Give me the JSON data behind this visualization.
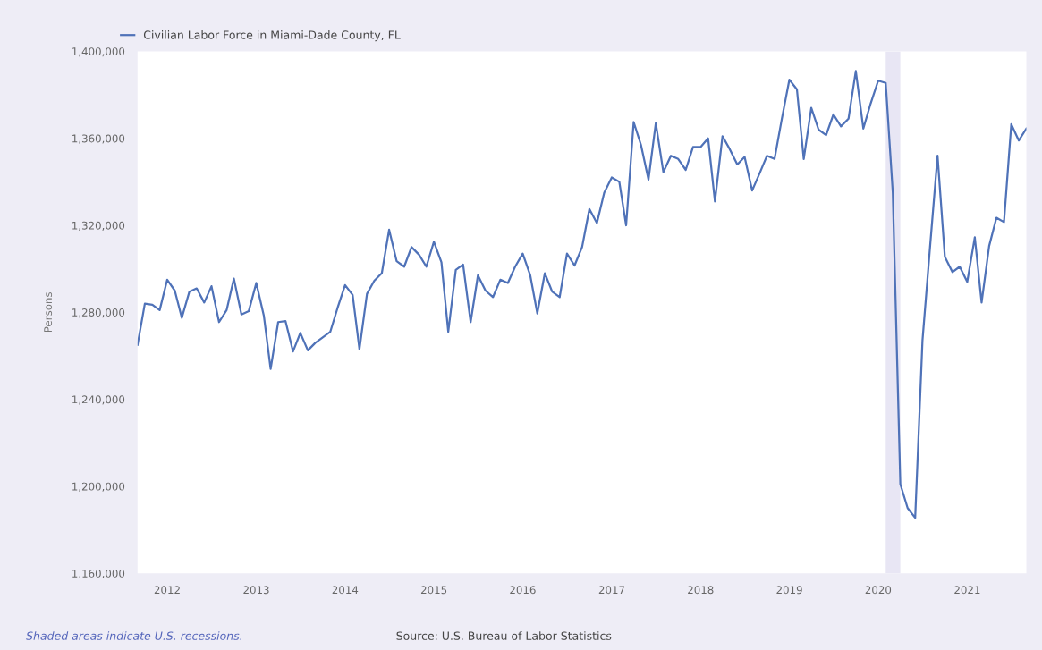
{
  "chart_data": {
    "type": "line",
    "ylabel": "Persons",
    "annotations": [
      "Shaded areas indicate U.S. recessions.",
      "Source: U.S. Bureau of Labor Statistics"
    ],
    "x": [
      "2011-09",
      "2011-10",
      "2011-11",
      "2011-12",
      "2012-01",
      "2012-02",
      "2012-03",
      "2012-04",
      "2012-05",
      "2012-06",
      "2012-07",
      "2012-08",
      "2012-09",
      "2012-10",
      "2012-11",
      "2012-12",
      "2013-01",
      "2013-02",
      "2013-03",
      "2013-04",
      "2013-05",
      "2013-06",
      "2013-07",
      "2013-08",
      "2013-09",
      "2013-10",
      "2013-11",
      "2013-12",
      "2014-01",
      "2014-02",
      "2014-03",
      "2014-04",
      "2014-05",
      "2014-06",
      "2014-07",
      "2014-08",
      "2014-09",
      "2014-10",
      "2014-11",
      "2014-12",
      "2015-01",
      "2015-02",
      "2015-03",
      "2015-04",
      "2015-05",
      "2015-06",
      "2015-07",
      "2015-08",
      "2015-09",
      "2015-10",
      "2015-11",
      "2015-12",
      "2016-01",
      "2016-02",
      "2016-03",
      "2016-04",
      "2016-05",
      "2016-06",
      "2016-07",
      "2016-08",
      "2016-09",
      "2016-10",
      "2016-11",
      "2016-12",
      "2017-01",
      "2017-02",
      "2017-03",
      "2017-04",
      "2017-05",
      "2017-06",
      "2017-07",
      "2017-08",
      "2017-09",
      "2017-10",
      "2017-11",
      "2017-12",
      "2018-01",
      "2018-02",
      "2018-03",
      "2018-04",
      "2018-05",
      "2018-06",
      "2018-07",
      "2018-08",
      "2018-09",
      "2018-10",
      "2018-11",
      "2018-12",
      "2019-01",
      "2019-02",
      "2019-03",
      "2019-04",
      "2019-05",
      "2019-06",
      "2019-07",
      "2019-08",
      "2019-09",
      "2019-10",
      "2019-11",
      "2019-12",
      "2020-01",
      "2020-02",
      "2020-03",
      "2020-04",
      "2020-05",
      "2020-06",
      "2020-07",
      "2020-08",
      "2020-09",
      "2020-10",
      "2020-11",
      "2020-12",
      "2021-01",
      "2021-02",
      "2021-03",
      "2021-04",
      "2021-05",
      "2021-06",
      "2021-07",
      "2021-08",
      "2021-09"
    ],
    "series": [
      {
        "name": "Civilian Labor Force in Miami-Dade County, FL",
        "color": "#4f72b8",
        "values": [
          1265000,
          1284000,
          1283500,
          1281000,
          1295000,
          1290000,
          1277500,
          1289500,
          1291000,
          1284500,
          1292000,
          1275500,
          1281000,
          1295500,
          1279000,
          1280500,
          1293500,
          1278500,
          1254000,
          1275500,
          1276000,
          1262000,
          1270500,
          1262500,
          1266000,
          1268500,
          1271000,
          1282000,
          1292500,
          1288000,
          1263000,
          1288500,
          1294500,
          1298000,
          1318000,
          1303500,
          1301000,
          1310000,
          1306500,
          1301000,
          1312500,
          1303000,
          1271000,
          1299500,
          1302000,
          1275500,
          1297000,
          1290000,
          1287000,
          1295000,
          1293500,
          1301000,
          1307000,
          1297000,
          1279500,
          1298000,
          1289500,
          1287000,
          1307000,
          1301500,
          1310000,
          1327500,
          1321000,
          1335000,
          1342000,
          1340000,
          1320000,
          1367500,
          1357000,
          1341000,
          1367000,
          1344500,
          1352000,
          1350500,
          1345500,
          1356000,
          1356000,
          1360000,
          1331000,
          1361000,
          1355000,
          1348000,
          1351500,
          1336000,
          1344000,
          1352000,
          1350500,
          1369000,
          1387000,
          1382500,
          1350500,
          1374000,
          1364000,
          1361500,
          1371000,
          1365500,
          1369000,
          1391000,
          1364500,
          1376000,
          1386500,
          1385500,
          1335000,
          1201000,
          1190000,
          1185500,
          1267000,
          1310000,
          1352000,
          1305500,
          1298500,
          1301000,
          1294000,
          1314500,
          1284500,
          1310500,
          1323500,
          1321500,
          1366500,
          1359000,
          1364500
        ]
      }
    ],
    "xlim": [
      "2011-09",
      "2021-09"
    ],
    "xticks": [
      {
        "value": "2012",
        "label": "2012"
      },
      {
        "value": "2013",
        "label": "2013"
      },
      {
        "value": "2014",
        "label": "2014"
      },
      {
        "value": "2015",
        "label": "2015"
      },
      {
        "value": "2016",
        "label": "2016"
      },
      {
        "value": "2017",
        "label": "2017"
      },
      {
        "value": "2018",
        "label": "2018"
      },
      {
        "value": "2019",
        "label": "2019"
      },
      {
        "value": "2020",
        "label": "2020"
      },
      {
        "value": "2021",
        "label": "2021"
      }
    ],
    "ylim": [
      1160000,
      1400000
    ],
    "yticks": [
      {
        "value": 1160000,
        "label": "1,160,000"
      },
      {
        "value": 1200000,
        "label": "1,200,000"
      },
      {
        "value": 1240000,
        "label": "1,240,000"
      },
      {
        "value": 1280000,
        "label": "1,280,000"
      },
      {
        "value": 1320000,
        "label": "1,320,000"
      },
      {
        "value": 1360000,
        "label": "1,360,000"
      },
      {
        "value": 1400000,
        "label": "1,400,000"
      }
    ],
    "bands": [
      {
        "axis": "x",
        "from": "2020-02",
        "to": "2020-04",
        "color": "#e8e6f4"
      }
    ],
    "legend": "top left",
    "line_style": "solid",
    "marker": "none"
  }
}
